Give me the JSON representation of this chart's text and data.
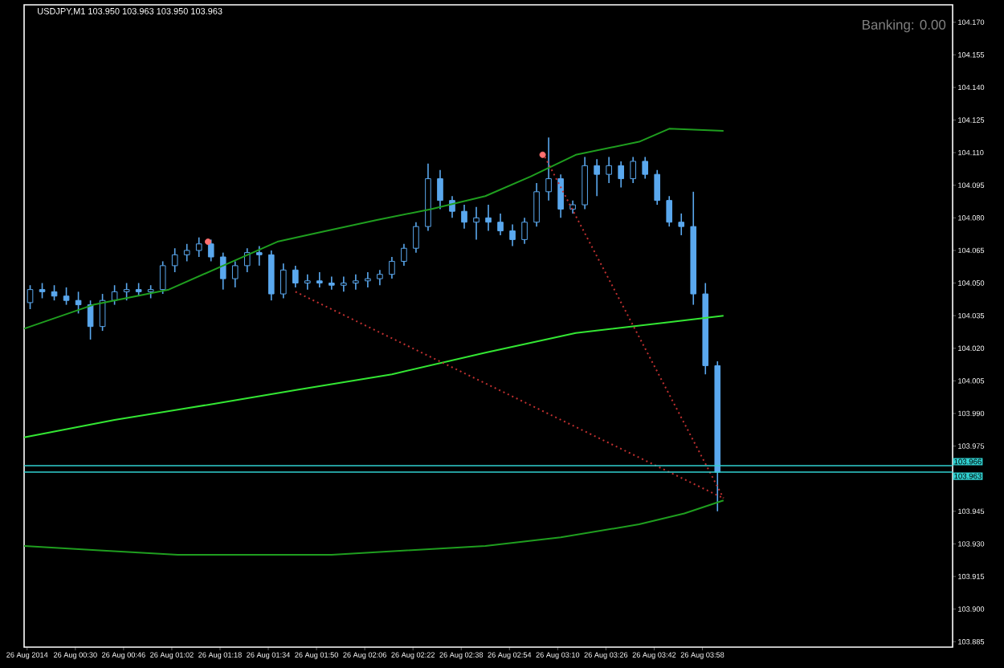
{
  "chart_data": {
    "type": "candlestick",
    "title": "USDJPY,M1  103.950 103.963 103.950 103.963",
    "color": "#5aa8ee",
    "x": [
      "2014-08-26T00:15",
      "2014-08-26T00:19",
      "2014-08-26T00:23",
      "2014-08-26T00:27",
      "2014-08-26T00:31",
      "2014-08-26T00:35",
      "2014-08-26T00:39",
      "2014-08-26T00:43",
      "2014-08-26T00:47",
      "2014-08-26T00:51",
      "2014-08-26T00:55",
      "2014-08-26T00:59",
      "2014-08-26T01:03",
      "2014-08-26T01:07",
      "2014-08-26T01:11",
      "2014-08-26T01:15",
      "2014-08-26T01:19",
      "2014-08-26T01:23",
      "2014-08-26T01:27",
      "2014-08-26T01:31",
      "2014-08-26T01:35",
      "2014-08-26T01:39",
      "2014-08-26T01:43",
      "2014-08-26T01:47",
      "2014-08-26T01:51",
      "2014-08-26T01:55",
      "2014-08-26T01:59",
      "2014-08-26T02:03",
      "2014-08-26T02:07",
      "2014-08-26T02:11",
      "2014-08-26T02:15",
      "2014-08-26T02:19",
      "2014-08-26T02:23",
      "2014-08-26T02:27",
      "2014-08-26T02:31",
      "2014-08-26T02:35",
      "2014-08-26T02:39",
      "2014-08-26T02:43",
      "2014-08-26T02:47",
      "2014-08-26T02:51",
      "2014-08-26T02:55",
      "2014-08-26T02:59",
      "2014-08-26T03:03",
      "2014-08-26T03:07",
      "2014-08-26T03:11",
      "2014-08-26T03:15",
      "2014-08-26T03:19",
      "2014-08-26T03:23",
      "2014-08-26T03:27",
      "2014-08-26T03:31",
      "2014-08-26T03:35",
      "2014-08-26T03:39",
      "2014-08-26T03:43",
      "2014-08-26T03:47",
      "2014-08-26T03:51",
      "2014-08-26T03:55",
      "2014-08-26T03:59",
      "2014-08-26T04:03"
    ],
    "ohlc": [
      [
        104.041,
        104.049,
        104.038,
        104.047
      ],
      [
        104.047,
        104.05,
        104.043,
        104.046
      ],
      [
        104.046,
        104.049,
        104.042,
        104.044
      ],
      [
        104.044,
        104.048,
        104.04,
        104.042
      ],
      [
        104.042,
        104.046,
        104.036,
        104.04
      ],
      [
        104.04,
        104.042,
        104.024,
        104.03
      ],
      [
        104.03,
        104.045,
        104.028,
        104.042
      ],
      [
        104.042,
        104.049,
        104.04,
        104.046
      ],
      [
        104.046,
        104.05,
        104.042,
        104.047
      ],
      [
        104.047,
        104.05,
        104.044,
        104.046
      ],
      [
        104.046,
        104.049,
        104.043,
        104.047
      ],
      [
        104.047,
        104.06,
        104.045,
        104.058
      ],
      [
        104.058,
        104.066,
        104.055,
        104.063
      ],
      [
        104.063,
        104.068,
        104.06,
        104.065
      ],
      [
        104.065,
        104.071,
        104.062,
        104.068
      ],
      [
        104.068,
        104.07,
        104.06,
        104.062
      ],
      [
        104.062,
        104.064,
        104.047,
        104.052
      ],
      [
        104.052,
        104.06,
        104.048,
        104.058
      ],
      [
        104.058,
        104.066,
        104.055,
        104.064
      ],
      [
        104.064,
        104.067,
        104.058,
        104.063
      ],
      [
        104.063,
        104.065,
        104.042,
        104.045
      ],
      [
        104.045,
        104.059,
        104.043,
        104.056
      ],
      [
        104.056,
        104.058,
        104.048,
        104.05
      ],
      [
        104.05,
        104.054,
        104.047,
        104.051
      ],
      [
        104.051,
        104.055,
        104.048,
        104.05
      ],
      [
        104.05,
        104.053,
        104.047,
        104.049
      ],
      [
        104.049,
        104.053,
        104.046,
        104.05
      ],
      [
        104.05,
        104.054,
        104.047,
        104.051
      ],
      [
        104.051,
        104.055,
        104.048,
        104.052
      ],
      [
        104.052,
        104.056,
        104.049,
        104.054
      ],
      [
        104.054,
        104.062,
        104.052,
        104.06
      ],
      [
        104.06,
        104.068,
        104.058,
        104.066
      ],
      [
        104.066,
        104.078,
        104.064,
        104.076
      ],
      [
        104.076,
        104.105,
        104.074,
        104.098
      ],
      [
        104.098,
        104.102,
        104.084,
        104.088
      ],
      [
        104.088,
        104.09,
        104.08,
        104.083
      ],
      [
        104.083,
        104.086,
        104.075,
        104.078
      ],
      [
        104.078,
        104.085,
        104.07,
        104.08
      ],
      [
        104.08,
        104.086,
        104.074,
        104.078
      ],
      [
        104.078,
        104.082,
        104.072,
        104.074
      ],
      [
        104.074,
        104.077,
        104.067,
        104.07
      ],
      [
        104.07,
        104.08,
        104.068,
        104.078
      ],
      [
        104.078,
        104.096,
        104.076,
        104.092
      ],
      [
        104.092,
        104.117,
        104.088,
        104.098
      ],
      [
        104.098,
        104.1,
        104.08,
        104.084
      ],
      [
        104.084,
        104.088,
        104.082,
        104.086
      ],
      [
        104.086,
        104.108,
        104.084,
        104.104
      ],
      [
        104.104,
        104.107,
        104.09,
        104.1
      ],
      [
        104.1,
        104.108,
        104.096,
        104.104
      ],
      [
        104.104,
        104.106,
        104.094,
        104.098
      ],
      [
        104.098,
        104.108,
        104.096,
        104.106
      ],
      [
        104.106,
        104.108,
        104.098,
        104.1
      ],
      [
        104.1,
        104.102,
        104.086,
        104.088
      ],
      [
        104.088,
        104.09,
        104.076,
        104.078
      ],
      [
        104.078,
        104.082,
        104.072,
        104.076
      ],
      [
        104.076,
        104.092,
        104.04,
        104.045
      ],
      [
        104.045,
        104.05,
        104.008,
        104.012
      ],
      [
        104.012,
        104.014,
        103.945,
        103.963
      ]
    ],
    "series": [
      {
        "type": "line",
        "color": "#1f9e1f",
        "line_style": "solid",
        "x": [
          "2014-08-26T00:13",
          "2014-08-26T00:36",
          "2014-08-26T01:01",
          "2014-08-26T01:19",
          "2014-08-26T01:37",
          "2014-08-26T01:50",
          "2014-08-26T02:10",
          "2014-08-26T02:28",
          "2014-08-26T02:46",
          "2014-08-26T03:01",
          "2014-08-26T03:16",
          "2014-08-26T03:37",
          "2014-08-26T03:47",
          "2014-08-26T04:05"
        ],
        "values": [
          104.029,
          104.04,
          104.047,
          104.058,
          104.069,
          104.073,
          104.079,
          104.084,
          104.09,
          104.099,
          104.109,
          104.115,
          104.121,
          104.12
        ]
      },
      {
        "type": "line",
        "color": "#33e633",
        "line_style": "solid",
        "x": [
          "2014-08-26T00:13",
          "2014-08-26T00:43",
          "2014-08-26T01:14",
          "2014-08-26T01:44",
          "2014-08-26T02:15",
          "2014-08-26T02:46",
          "2014-08-26T03:16",
          "2014-08-26T03:47",
          "2014-08-26T04:05"
        ],
        "values": [
          103.979,
          103.987,
          103.994,
          104.001,
          104.008,
          104.018,
          104.027,
          104.032,
          104.035
        ]
      },
      {
        "type": "line",
        "color": "#1f9e1f",
        "line_style": "solid",
        "x": [
          "2014-08-26T00:13",
          "2014-08-26T00:38",
          "2014-08-26T01:04",
          "2014-08-26T01:29",
          "2014-08-26T01:55",
          "2014-08-26T02:20",
          "2014-08-26T02:46",
          "2014-08-26T03:11",
          "2014-08-26T03:37",
          "2014-08-26T03:52",
          "2014-08-26T04:05"
        ],
        "values": [
          103.929,
          103.927,
          103.925,
          103.925,
          103.925,
          103.927,
          103.929,
          103.933,
          103.939,
          103.944,
          103.95
        ]
      },
      {
        "type": "line",
        "color": "#c03030",
        "line_style": "dotted",
        "x": [
          "2014-08-26T01:43",
          "2014-08-26T04:05"
        ],
        "values": [
          104.046,
          103.951
        ]
      },
      {
        "type": "line",
        "color": "#c03030",
        "line_style": "dotted",
        "x": [
          "2014-08-26T03:05",
          "2014-08-26T04:05"
        ],
        "values": [
          104.11,
          103.951
        ]
      },
      {
        "type": "scatter",
        "color": "#ff7070",
        "marker": "circle",
        "x": [
          "2014-08-26T01:14",
          "2014-08-26T03:05"
        ],
        "values": [
          104.069,
          104.109
        ]
      }
    ],
    "ref_lines": [
      {
        "axis": "y",
        "value": 103.966,
        "label": "103.966",
        "color": "#30d0d0"
      },
      {
        "axis": "y",
        "value": 103.963,
        "label": "103.963",
        "color": "#30d0d0"
      }
    ],
    "annotations": [
      "Banking: 0.00"
    ],
    "xlim": [
      "2014-08-26T00:13",
      "2014-08-26T05:21"
    ],
    "ylim": [
      103.8825,
      104.178
    ],
    "xticks": [
      {
        "value": "2014-08-26T00:14",
        "label": "26 Aug 2014"
      },
      {
        "value": "2014-08-26T00:30",
        "label": "26 Aug 00:30"
      },
      {
        "value": "2014-08-26T00:46",
        "label": "26 Aug 00:46"
      },
      {
        "value": "2014-08-26T01:02",
        "label": "26 Aug 01:02"
      },
      {
        "value": "2014-08-26T01:18",
        "label": "26 Aug 01:18"
      },
      {
        "value": "2014-08-26T01:34",
        "label": "26 Aug 01:34"
      },
      {
        "value": "2014-08-26T01:50",
        "label": "26 Aug 01:50"
      },
      {
        "value": "2014-08-26T02:06",
        "label": "26 Aug 02:06"
      },
      {
        "value": "2014-08-26T02:22",
        "label": "26 Aug 02:22"
      },
      {
        "value": "2014-08-26T02:38",
        "label": "26 Aug 02:38"
      },
      {
        "value": "2014-08-26T02:54",
        "label": "26 Aug 02:54"
      },
      {
        "value": "2014-08-26T03:10",
        "label": "26 Aug 03:10"
      },
      {
        "value": "2014-08-26T03:26",
        "label": "26 Aug 03:26"
      },
      {
        "value": "2014-08-26T03:42",
        "label": "26 Aug 03:42"
      },
      {
        "value": "2014-08-26T03:58",
        "label": "26 Aug 03:58"
      }
    ],
    "yticks": [
      {
        "value": 103.885,
        "label": "103.885"
      },
      {
        "value": 103.9,
        "label": "103.900"
      },
      {
        "value": 103.915,
        "label": "103.915"
      },
      {
        "value": 103.93,
        "label": "103.930"
      },
      {
        "value": 103.945,
        "label": "103.945"
      },
      {
        "value": 103.975,
        "label": "103.975"
      },
      {
        "value": 103.99,
        "label": "103.990"
      },
      {
        "value": 104.005,
        "label": "104.005"
      },
      {
        "value": 104.02,
        "label": "104.020"
      },
      {
        "value": 104.035,
        "label": "104.035"
      },
      {
        "value": 104.05,
        "label": "104.050"
      },
      {
        "value": 104.065,
        "label": "104.065"
      },
      {
        "value": 104.08,
        "label": "104.080"
      },
      {
        "value": 104.095,
        "label": "104.095"
      },
      {
        "value": 104.11,
        "label": "104.110"
      },
      {
        "value": 104.125,
        "label": "104.125"
      },
      {
        "value": 104.14,
        "label": "104.140"
      },
      {
        "value": 104.155,
        "label": "104.155"
      },
      {
        "value": 104.17,
        "label": "104.170"
      }
    ]
  }
}
